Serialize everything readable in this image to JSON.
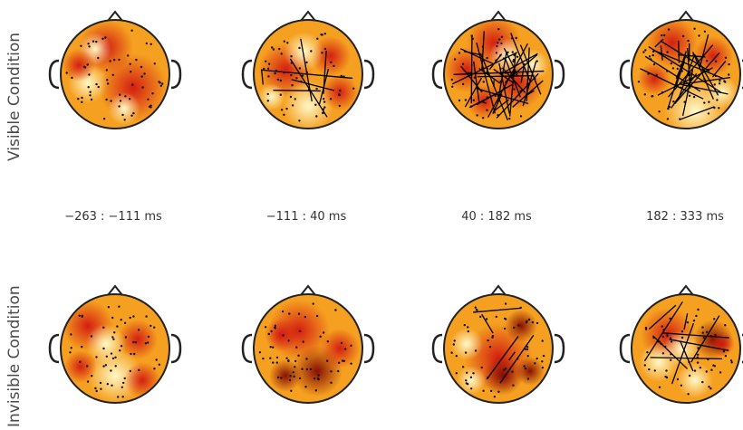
{
  "figure": {
    "rows": [
      {
        "label": "Visible Condition"
      },
      {
        "label": "Invisible Condition"
      }
    ],
    "time_windows": [
      "−263  :  −111 ms",
      "−111 : 40 ms",
      "40 : 182 ms",
      "182 : 333 ms"
    ],
    "colors": {
      "hot": "#d01010",
      "warm": "#f5a020",
      "cool": "#fff8c8",
      "dark": "#7a0000",
      "line": "#000000"
    }
  }
}
